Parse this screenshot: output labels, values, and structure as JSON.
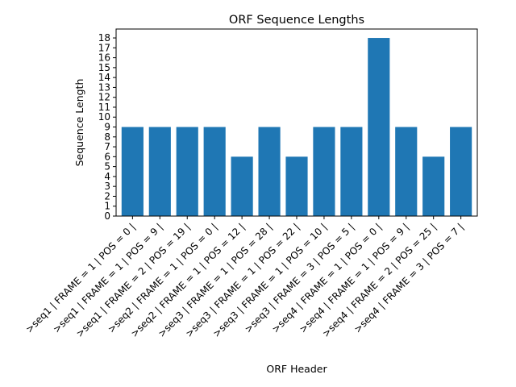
{
  "chart_data": {
    "type": "bar",
    "title": "ORF Sequence Lengths",
    "xlabel": "ORF Header",
    "ylabel": "Sequence Length",
    "categories": [
      ">seq1 | FRAME = 1 | POS = 0 |",
      ">seq1 | FRAME = 1 | POS = 9 |",
      ">seq1 | FRAME = 2 | POS = 19 |",
      ">seq2 | FRAME = 1 | POS = 0 |",
      ">seq2 | FRAME = 1 | POS = 12 |",
      ">seq3 | FRAME = 1 | POS = 28 |",
      ">seq3 | FRAME = 1 | POS = 22 |",
      ">seq3 | FRAME = 1 | POS = 10 |",
      ">seq3 | FRAME = 3 | POS = 5 |",
      ">seq4 | FRAME = 1 | POS = 0 |",
      ">seq4 | FRAME = 1 | POS = 9 |",
      ">seq4 | FRAME = 2 | POS = 25 |",
      ">seq4 | FRAME = 3 | POS = 7 |"
    ],
    "values": [
      9,
      9,
      9,
      9,
      6,
      9,
      6,
      9,
      9,
      18,
      9,
      6,
      9
    ],
    "ylim": [
      0,
      18.9
    ],
    "yticks": [
      0,
      1,
      2,
      3,
      4,
      5,
      6,
      7,
      8,
      9,
      10,
      11,
      12,
      13,
      14,
      15,
      16,
      17,
      18
    ],
    "bar_color": "#1f77b4",
    "grid": false,
    "legend": "none"
  }
}
